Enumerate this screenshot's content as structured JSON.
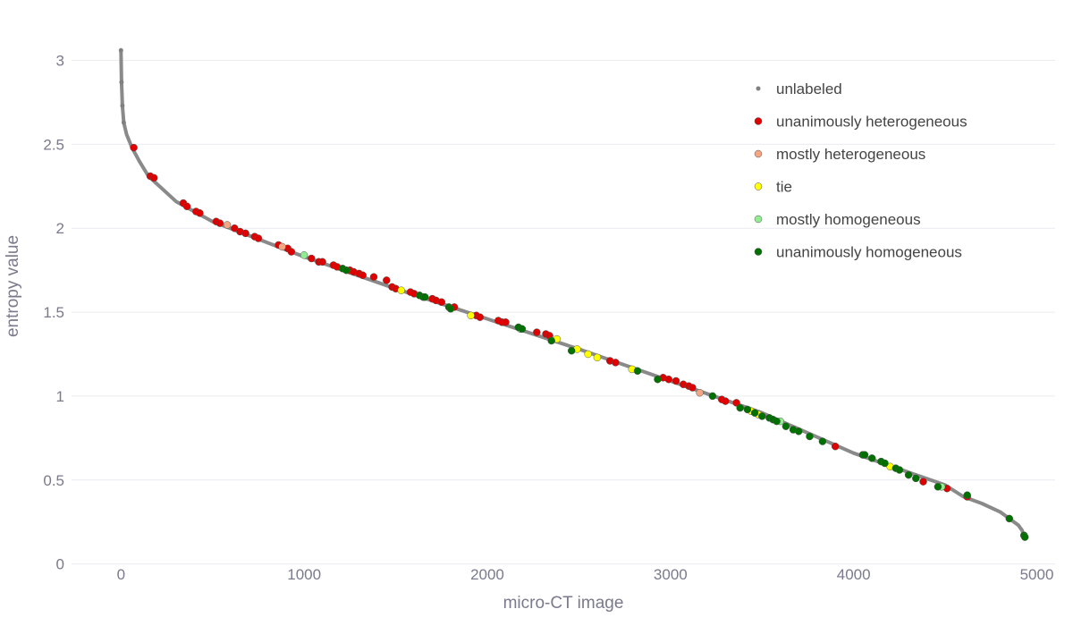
{
  "chart_data": {
    "type": "scatter",
    "title": "",
    "xlabel": "micro-CT image",
    "ylabel": "entropy value",
    "xlim": [
      -270,
      5100
    ],
    "ylim": [
      -0.05,
      3.2
    ],
    "x_ticks": [
      0,
      1000,
      2000,
      3000,
      4000,
      5000
    ],
    "y_ticks": [
      0,
      0.5,
      1,
      1.5,
      2,
      2.5,
      3
    ],
    "x_tick_labels": [
      "0",
      "1000",
      "2000",
      "3000",
      "4000",
      "5000"
    ],
    "y_tick_labels": [
      "0",
      "0.5",
      "1",
      "1.5",
      "2",
      "2.5",
      "3"
    ],
    "grid": true,
    "legend_position": "top-right",
    "unlabeled_curve": {
      "x": [
        0,
        3,
        8,
        15,
        30,
        60,
        100,
        150,
        200,
        300,
        400,
        500,
        1000,
        1500,
        2000,
        2500,
        3000,
        3500,
        4000,
        4500,
        4600,
        4700,
        4800,
        4850,
        4900,
        4920,
        4935
      ],
      "y": [
        3.06,
        2.87,
        2.73,
        2.63,
        2.56,
        2.48,
        2.4,
        2.31,
        2.26,
        2.16,
        2.1,
        2.04,
        1.83,
        1.64,
        1.46,
        1.28,
        1.09,
        0.9,
        0.66,
        0.47,
        0.4,
        0.36,
        0.31,
        0.27,
        0.23,
        0.2,
        0.15
      ]
    },
    "series": [
      {
        "name": "unlabeled",
        "color": "#808080",
        "marker": "small",
        "x": [
          0,
          3,
          8,
          15
        ],
        "y": [
          3.06,
          2.87,
          2.73,
          2.63
        ]
      },
      {
        "name": "unanimously heterogeneous",
        "color": "#e00000",
        "x": [
          70,
          160,
          180,
          340,
          360,
          410,
          430,
          520,
          540,
          620,
          650,
          680,
          730,
          750,
          860,
          910,
          930,
          1040,
          1080,
          1100,
          1160,
          1180,
          1250,
          1270,
          1300,
          1320,
          1380,
          1450,
          1480,
          1500,
          1580,
          1600,
          1700,
          1720,
          1750,
          1820,
          1940,
          1960,
          2060,
          2080,
          2100,
          2270,
          2320,
          2340,
          2670,
          2700,
          2960,
          2990,
          3030,
          3070,
          3100,
          3120,
          3280,
          3300,
          3360,
          3900,
          4380,
          4510,
          4620
        ],
        "y": [
          2.48,
          2.31,
          2.3,
          2.15,
          2.13,
          2.1,
          2.09,
          2.04,
          2.03,
          2.0,
          1.98,
          1.97,
          1.95,
          1.94,
          1.9,
          1.88,
          1.86,
          1.82,
          1.8,
          1.8,
          1.78,
          1.77,
          1.75,
          1.74,
          1.73,
          1.72,
          1.71,
          1.69,
          1.65,
          1.64,
          1.62,
          1.61,
          1.58,
          1.57,
          1.56,
          1.53,
          1.48,
          1.47,
          1.45,
          1.44,
          1.44,
          1.38,
          1.37,
          1.36,
          1.21,
          1.2,
          1.11,
          1.1,
          1.09,
          1.07,
          1.06,
          1.05,
          0.98,
          0.97,
          0.96,
          0.7,
          0.49,
          0.45,
          0.4
        ]
      },
      {
        "name": "mostly heterogeneous",
        "color": "#f4a582",
        "x": [
          580,
          880,
          3160
        ],
        "y": [
          2.02,
          1.89,
          1.02
        ]
      },
      {
        "name": "tie",
        "color": "#ffff00",
        "x": [
          1530,
          1910,
          2380,
          2490,
          2550,
          2600,
          2790,
          3440,
          3480,
          4200
        ],
        "y": [
          1.63,
          1.48,
          1.34,
          1.28,
          1.25,
          1.23,
          1.16,
          0.91,
          0.89,
          0.58
        ]
      },
      {
        "name": "mostly homogeneous",
        "color": "#90ee90",
        "x": [
          1000,
          2180,
          3600,
          4480
        ],
        "y": [
          1.84,
          1.4,
          0.85,
          0.46
        ]
      },
      {
        "name": "unanimously homogeneous",
        "color": "#007000",
        "x": [
          1210,
          1230,
          1630,
          1650,
          1660,
          1790,
          1800,
          2170,
          2190,
          2350,
          2460,
          2820,
          2930,
          3230,
          3380,
          3420,
          3460,
          3500,
          3540,
          3560,
          3580,
          3630,
          3670,
          3700,
          3760,
          3830,
          4050,
          4060,
          4100,
          4150,
          4170,
          4230,
          4250,
          4300,
          4340,
          4460,
          4620,
          4850,
          4930,
          4935
        ],
        "y": [
          1.76,
          1.75,
          1.6,
          1.59,
          1.59,
          1.53,
          1.52,
          1.41,
          1.4,
          1.33,
          1.27,
          1.15,
          1.1,
          1.0,
          0.93,
          0.92,
          0.9,
          0.88,
          0.87,
          0.86,
          0.85,
          0.82,
          0.8,
          0.79,
          0.76,
          0.73,
          0.65,
          0.65,
          0.63,
          0.61,
          0.6,
          0.57,
          0.56,
          0.53,
          0.51,
          0.46,
          0.41,
          0.27,
          0.17,
          0.16
        ]
      }
    ]
  }
}
